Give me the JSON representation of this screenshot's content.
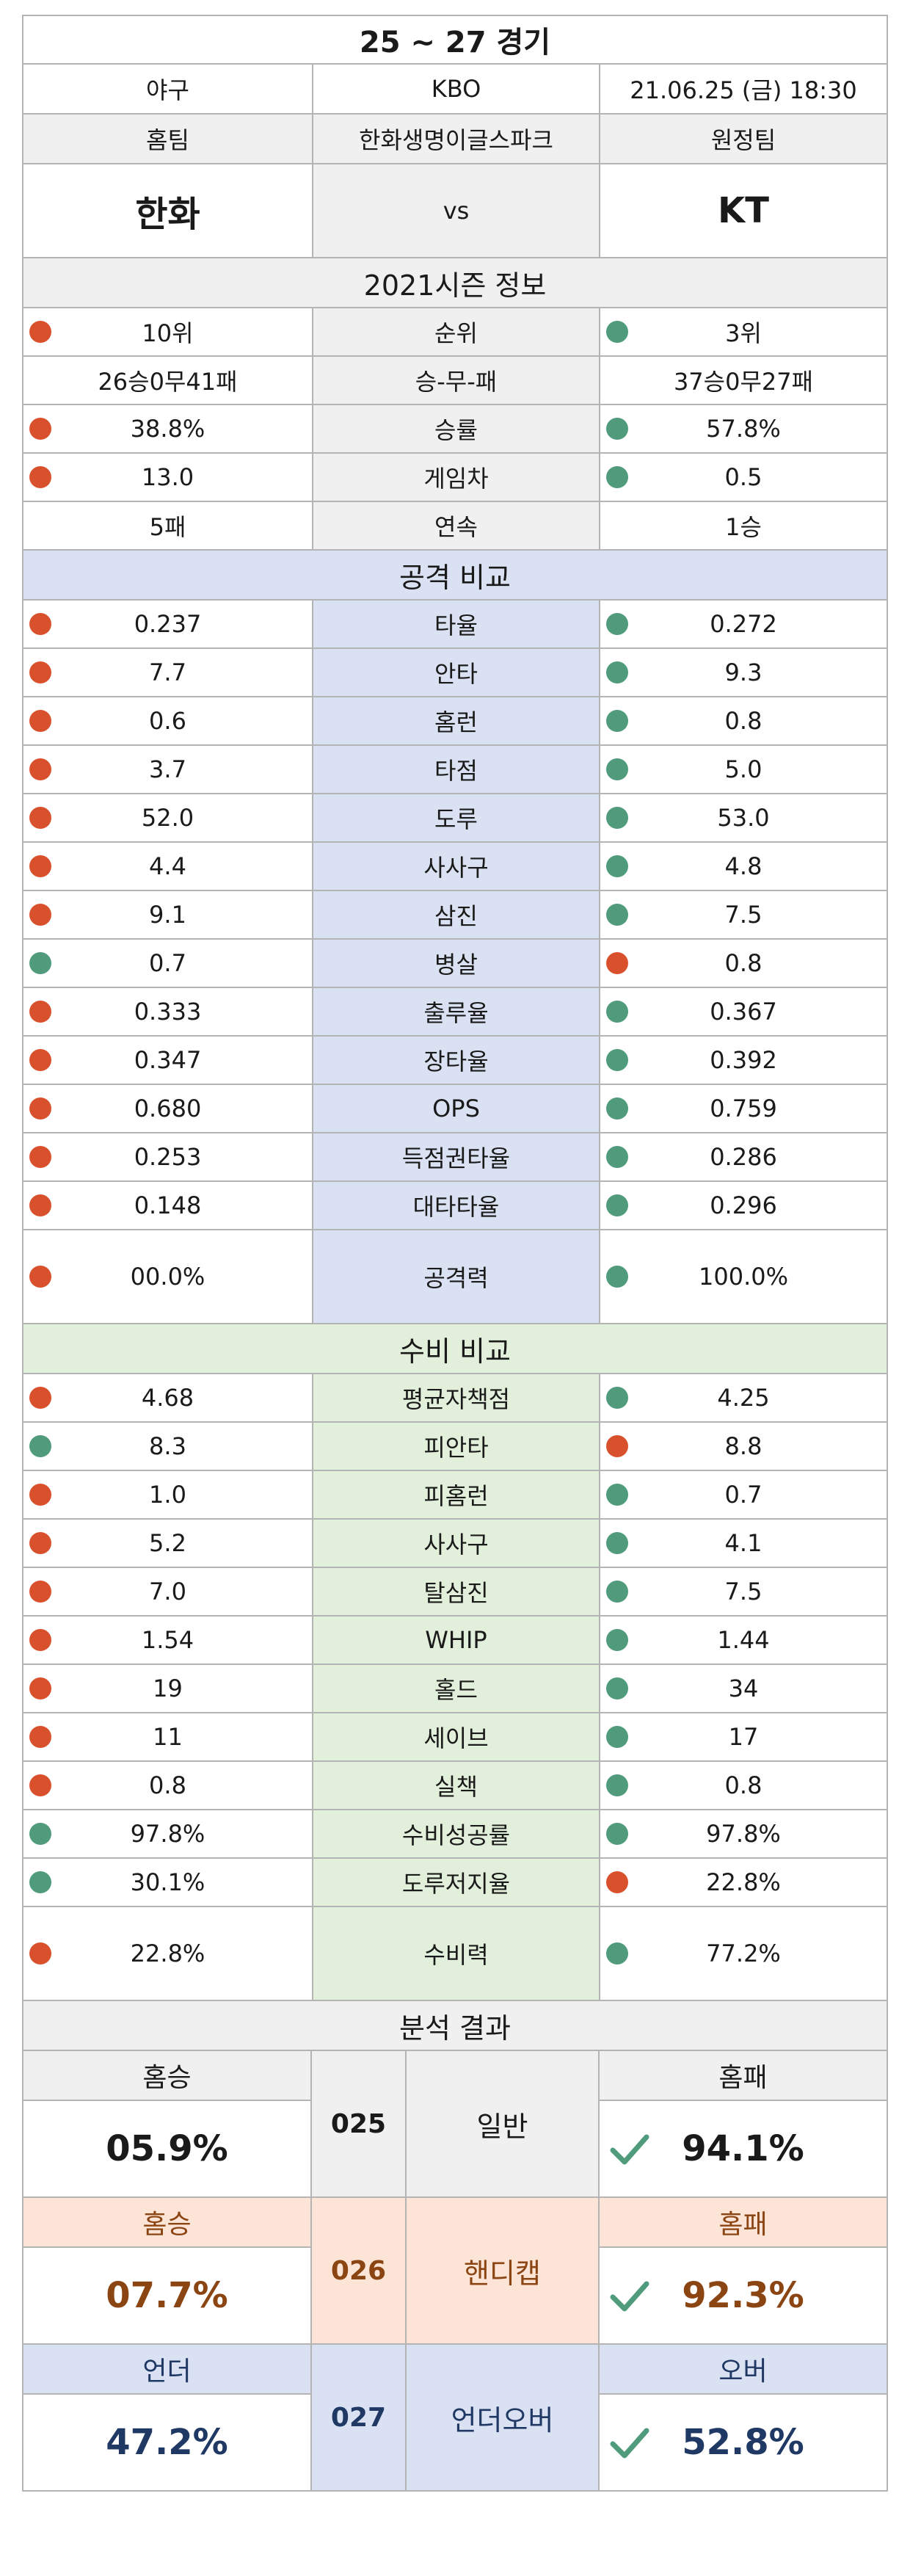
{
  "title": "25 ~ 27 경기",
  "match": {
    "sport": "야구",
    "league": "KBO",
    "datetime": "21.06.25 (금) 18:30"
  },
  "teams": {
    "home_label": "홈팀",
    "stadium": "한화생명이글스파크",
    "away_label": "원정팀",
    "home": "한화",
    "vs": "vs",
    "away": "KT"
  },
  "season": {
    "title": "2021시즌 정보",
    "rows": [
      {
        "home": "10위",
        "label": "순위",
        "away": "3위",
        "hd": "red",
        "ad": "green"
      },
      {
        "home": "26승0무41패",
        "label": "승-무-패",
        "away": "37승0무27패",
        "hd": "",
        "ad": ""
      },
      {
        "home": "38.8%",
        "label": "승률",
        "away": "57.8%",
        "hd": "red",
        "ad": "green"
      },
      {
        "home": "13.0",
        "label": "게임차",
        "away": "0.5",
        "hd": "red",
        "ad": "green"
      },
      {
        "home": "5패",
        "label": "연속",
        "away": "1승",
        "hd": "",
        "ad": ""
      }
    ]
  },
  "attack": {
    "title": "공격 비교",
    "rows": [
      {
        "home": "0.237",
        "label": "타율",
        "away": "0.272",
        "hd": "red",
        "ad": "green"
      },
      {
        "home": "7.7",
        "label": "안타",
        "away": "9.3",
        "hd": "red",
        "ad": "green"
      },
      {
        "home": "0.6",
        "label": "홈런",
        "away": "0.8",
        "hd": "red",
        "ad": "green"
      },
      {
        "home": "3.7",
        "label": "타점",
        "away": "5.0",
        "hd": "red",
        "ad": "green"
      },
      {
        "home": "52.0",
        "label": "도루",
        "away": "53.0",
        "hd": "red",
        "ad": "green"
      },
      {
        "home": "4.4",
        "label": "사사구",
        "away": "4.8",
        "hd": "red",
        "ad": "green"
      },
      {
        "home": "9.1",
        "label": "삼진",
        "away": "7.5",
        "hd": "red",
        "ad": "green"
      },
      {
        "home": "0.7",
        "label": "병살",
        "away": "0.8",
        "hd": "green",
        "ad": "red"
      },
      {
        "home": "0.333",
        "label": "출루율",
        "away": "0.367",
        "hd": "red",
        "ad": "green"
      },
      {
        "home": "0.347",
        "label": "장타율",
        "away": "0.392",
        "hd": "red",
        "ad": "green"
      },
      {
        "home": "0.680",
        "label": "OPS",
        "away": "0.759",
        "hd": "red",
        "ad": "green"
      },
      {
        "home": "0.253",
        "label": "득점권타율",
        "away": "0.286",
        "hd": "red",
        "ad": "green"
      },
      {
        "home": "0.148",
        "label": "대타타율",
        "away": "0.296",
        "hd": "red",
        "ad": "green"
      }
    ],
    "power": {
      "home": "00.0%",
      "label": "공격력",
      "away": "100.0%",
      "hd": "red",
      "ad": "green"
    }
  },
  "defense": {
    "title": "수비 비교",
    "rows": [
      {
        "home": "4.68",
        "label": "평균자책점",
        "away": "4.25",
        "hd": "red",
        "ad": "green"
      },
      {
        "home": "8.3",
        "label": "피안타",
        "away": "8.8",
        "hd": "green",
        "ad": "red"
      },
      {
        "home": "1.0",
        "label": "피홈런",
        "away": "0.7",
        "hd": "red",
        "ad": "green"
      },
      {
        "home": "5.2",
        "label": "사사구",
        "away": "4.1",
        "hd": "red",
        "ad": "green"
      },
      {
        "home": "7.0",
        "label": "탈삼진",
        "away": "7.5",
        "hd": "red",
        "ad": "green"
      },
      {
        "home": "1.54",
        "label": "WHIP",
        "away": "1.44",
        "hd": "red",
        "ad": "green"
      },
      {
        "home": "19",
        "label": "홀드",
        "away": "34",
        "hd": "red",
        "ad": "green"
      },
      {
        "home": "11",
        "label": "세이브",
        "away": "17",
        "hd": "red",
        "ad": "green"
      },
      {
        "home": "0.8",
        "label": "실책",
        "away": "0.8",
        "hd": "red",
        "ad": "green"
      },
      {
        "home": "97.8%",
        "label": "수비성공률",
        "away": "97.8%",
        "hd": "green",
        "ad": "green"
      },
      {
        "home": "30.1%",
        "label": "도루저지율",
        "away": "22.8%",
        "hd": "green",
        "ad": "red"
      }
    ],
    "power": {
      "home": "22.8%",
      "label": "수비력",
      "away": "77.2%",
      "hd": "red",
      "ad": "green"
    }
  },
  "analysis": {
    "title": "분석 결과",
    "blocks": [
      {
        "id": "025",
        "type": "일반",
        "left_label": "홈승",
        "left_value": "05.9%",
        "right_label": "홈패",
        "right_value": "94.1%"
      },
      {
        "id": "026",
        "type": "핸디캡",
        "left_label": "홈승",
        "left_value": "07.7%",
        "right_label": "홈패",
        "right_value": "92.3%"
      },
      {
        "id": "027",
        "type": "언더오버",
        "left_label": "언더",
        "left_value": "47.2%",
        "right_label": "오버",
        "right_value": "52.8%"
      }
    ]
  },
  "colors": {
    "dot_red": "#d9512c",
    "dot_green": "#4f9b7c",
    "check": "#4f9b7c",
    "handicap_text": "#8b4513",
    "underover_text": "#1f3864"
  }
}
